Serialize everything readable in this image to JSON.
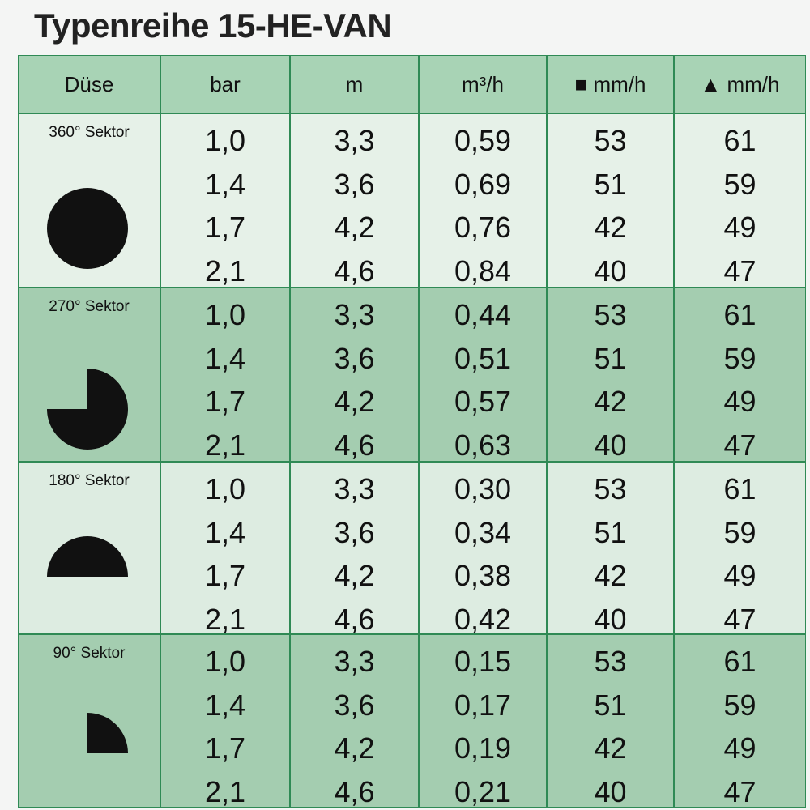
{
  "header": {
    "title": "Typenreihe 15-HE-VAN"
  },
  "table": {
    "columns": [
      "Düse",
      "bar",
      "m",
      "m³/h",
      "■ mm/h",
      "▲ mm/h"
    ],
    "groups": [
      {
        "label": "360° Sektor",
        "rows": [
          [
            "1,0",
            "3,3",
            "0,59",
            "53",
            "61"
          ],
          [
            "1,4",
            "3,6",
            "0,69",
            "51",
            "59"
          ],
          [
            "1,7",
            "4,2",
            "0,76",
            "42",
            "49"
          ],
          [
            "2,1",
            "4,6",
            "0,84",
            "40",
            "47"
          ]
        ]
      },
      {
        "label": "270° Sektor",
        "rows": [
          [
            "1,0",
            "3,3",
            "0,44",
            "53",
            "61"
          ],
          [
            "1,4",
            "3,6",
            "0,51",
            "51",
            "59"
          ],
          [
            "1,7",
            "4,2",
            "0,57",
            "42",
            "49"
          ],
          [
            "2,1",
            "4,6",
            "0,63",
            "40",
            "47"
          ]
        ]
      },
      {
        "label": "180° Sektor",
        "rows": [
          [
            "1,0",
            "3,3",
            "0,30",
            "53",
            "61"
          ],
          [
            "1,4",
            "3,6",
            "0,34",
            "51",
            "59"
          ],
          [
            "1,7",
            "4,2",
            "0,38",
            "42",
            "49"
          ],
          [
            "2,1",
            "4,6",
            "0,42",
            "40",
            "47"
          ]
        ]
      },
      {
        "label": "90° Sektor",
        "rows": [
          [
            "1,0",
            "3,3",
            "0,15",
            "53",
            "61"
          ],
          [
            "1,4",
            "3,6",
            "0,17",
            "51",
            "59"
          ],
          [
            "1,7",
            "4,2",
            "0,19",
            "42",
            "49"
          ],
          [
            "2,1",
            "4,6",
            "0,21",
            "40",
            "47"
          ]
        ]
      }
    ]
  }
}
